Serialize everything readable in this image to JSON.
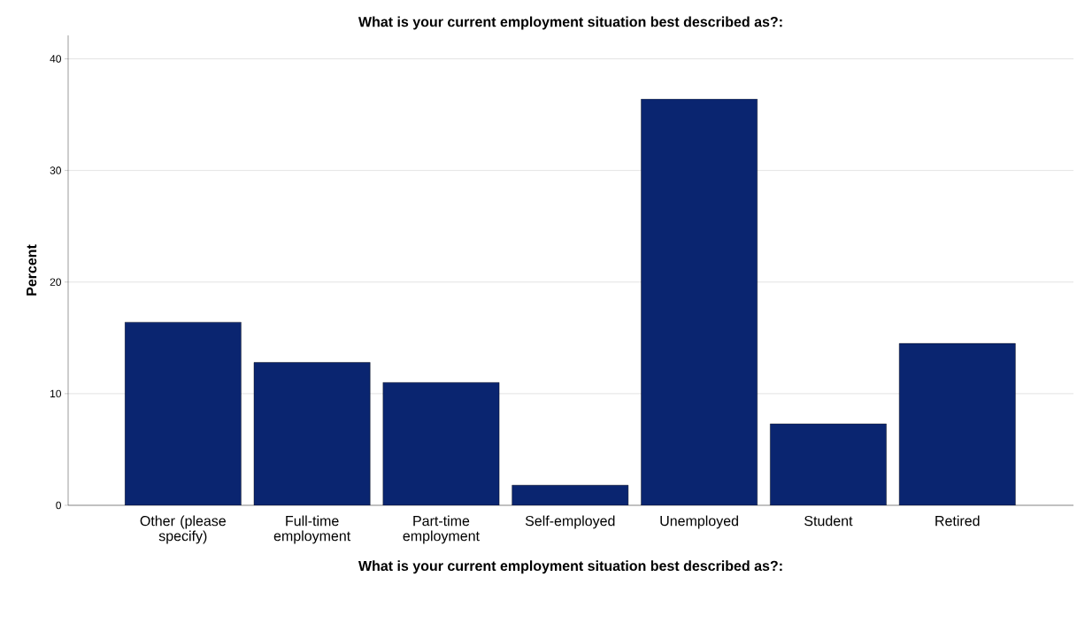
{
  "chart_data": {
    "type": "bar",
    "title": "What is your current employment situation best described as?:",
    "xlabel": "What is your current employment situation best described as?:",
    "ylabel": "Percent",
    "categories": [
      "Other (please specify)",
      "Full-time employment",
      "Part-time employment",
      "Self-employed",
      "Unemployed",
      "Student",
      "Retired"
    ],
    "values": [
      16.4,
      12.8,
      11.0,
      1.8,
      36.4,
      7.3,
      14.5
    ],
    "color": "#0a2570",
    "ylim": [
      0,
      42.1
    ],
    "yticks": [
      0,
      10,
      20,
      30,
      40
    ],
    "grid": "y"
  }
}
